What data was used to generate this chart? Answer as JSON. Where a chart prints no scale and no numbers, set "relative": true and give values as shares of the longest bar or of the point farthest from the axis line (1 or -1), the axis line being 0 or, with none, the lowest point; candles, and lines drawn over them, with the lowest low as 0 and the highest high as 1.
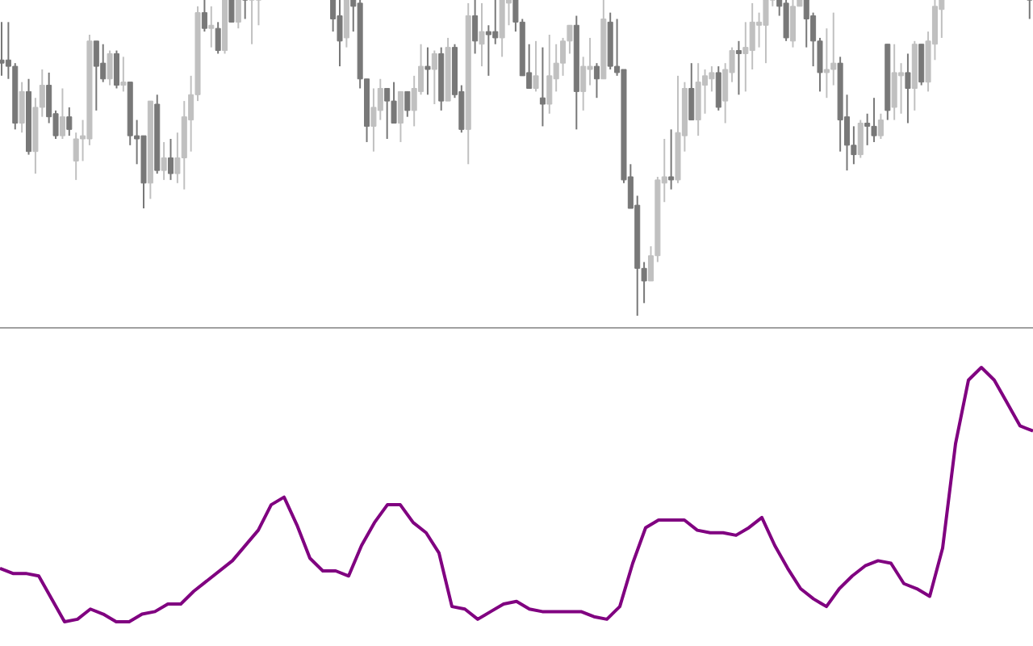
{
  "chart_data": [
    {
      "type": "candlestick",
      "relative": true,
      "categories": [
        null,
        null,
        null,
        null,
        null,
        null,
        null,
        null,
        null,
        null,
        null,
        null,
        null,
        null,
        null,
        null,
        null,
        null,
        null,
        null,
        null,
        null,
        null,
        null,
        null,
        null,
        null,
        null,
        null,
        null,
        null,
        null,
        null,
        null,
        null,
        null,
        null,
        null,
        null,
        null,
        null,
        null,
        null,
        null,
        null,
        null,
        null,
        null,
        null,
        null,
        null,
        null,
        null,
        null,
        null,
        null,
        null,
        null,
        null,
        null,
        null,
        null,
        null,
        null,
        null,
        null,
        null,
        null,
        null,
        null,
        null,
        null,
        null,
        null,
        null,
        null,
        null,
        null,
        null,
        null,
        null,
        null,
        null,
        null,
        null,
        null,
        null,
        null,
        null,
        null,
        null,
        null,
        null,
        null,
        null,
        null,
        null,
        null,
        null,
        null,
        null,
        null,
        null,
        null,
        null,
        null,
        null,
        null,
        null,
        null,
        null,
        null,
        null,
        null,
        null,
        null,
        null,
        null,
        null,
        null,
        null,
        null,
        null,
        null,
        null,
        null,
        null,
        null,
        null,
        null,
        null,
        null,
        null,
        null,
        null,
        null,
        null,
        null,
        null,
        null,
        null,
        null,
        null,
        null,
        null,
        null,
        null,
        null,
        null,
        null,
        null,
        null,
        null
      ],
      "ohlc": [
        [
          0.81,
          0.93,
          0.76,
          0.8
        ],
        [
          0.81,
          0.93,
          0.75,
          0.79
        ],
        [
          0.79,
          0.8,
          0.59,
          0.61
        ],
        [
          0.61,
          0.74,
          0.58,
          0.71
        ],
        [
          0.71,
          0.75,
          0.51,
          0.52
        ],
        [
          0.52,
          0.69,
          0.45,
          0.66
        ],
        [
          0.66,
          0.78,
          0.63,
          0.73
        ],
        [
          0.73,
          0.77,
          0.61,
          0.63
        ],
        [
          0.64,
          0.65,
          0.56,
          0.57
        ],
        [
          0.57,
          0.72,
          0.56,
          0.63
        ],
        [
          0.63,
          0.66,
          0.57,
          0.59
        ],
        [
          0.49,
          0.58,
          0.43,
          0.56
        ],
        [
          0.56,
          0.62,
          0.49,
          0.57
        ],
        [
          0.56,
          0.89,
          0.54,
          0.87
        ],
        [
          0.87,
          0.87,
          0.65,
          0.79
        ],
        [
          0.8,
          0.86,
          0.74,
          0.75
        ],
        [
          0.75,
          0.84,
          0.73,
          0.83
        ],
        [
          0.83,
          0.84,
          0.72,
          0.73
        ],
        [
          0.73,
          0.82,
          0.71,
          0.74
        ],
        [
          0.74,
          0.74,
          0.54,
          0.57
        ],
        [
          0.57,
          0.62,
          0.48,
          0.56
        ],
        [
          0.57,
          0.57,
          0.34,
          0.42
        ],
        [
          0.42,
          0.68,
          0.37,
          0.68
        ],
        [
          0.67,
          0.7,
          0.45,
          0.46
        ],
        [
          0.46,
          0.55,
          0.43,
          0.5
        ],
        [
          0.5,
          0.56,
          0.43,
          0.45
        ],
        [
          0.45,
          0.58,
          0.42,
          0.5
        ],
        [
          0.5,
          0.68,
          0.4,
          0.63
        ],
        [
          0.62,
          0.76,
          0.52,
          0.7
        ],
        [
          0.7,
          0.98,
          0.68,
          0.96
        ],
        [
          0.96,
          1,
          0.9,
          0.91
        ],
        [
          0.91,
          0.98,
          0.85,
          0.92
        ],
        [
          0.91,
          0.93,
          0.83,
          0.84
        ],
        [
          0.84,
          1,
          0.83,
          1
        ],
        [
          1,
          1,
          0.93,
          0.93
        ],
        [
          0.93,
          1,
          0.91,
          1
        ],
        [
          1,
          1,
          0.94,
          1
        ],
        [
          1,
          1,
          0.86,
          1
        ],
        [
          1,
          1,
          0.92,
          1
        ],
        null,
        null,
        null,
        null,
        null,
        null,
        null,
        null,
        null,
        null,
        [
          1,
          1,
          0.9,
          0.94
        ],
        [
          0.95,
          1,
          0.79,
          0.87
        ],
        [
          0.88,
          1,
          0.85,
          1
        ],
        [
          1,
          1,
          0.9,
          0.98
        ],
        [
          0.99,
          1,
          0.72,
          0.75
        ],
        [
          0.75,
          0.75,
          0.55,
          0.6
        ],
        [
          0.6,
          0.72,
          0.52,
          0.66
        ],
        [
          0.65,
          0.75,
          0.62,
          0.72
        ],
        [
          0.72,
          0.72,
          0.56,
          0.68
        ],
        [
          0.68,
          0.74,
          0.61,
          0.61
        ],
        [
          0.61,
          0.71,
          0.55,
          0.71
        ],
        [
          0.71,
          0.71,
          0.63,
          0.65
        ],
        [
          0.65,
          0.76,
          0.6,
          0.72
        ],
        [
          0.71,
          0.86,
          0.7,
          0.79
        ],
        [
          0.79,
          0.85,
          0.7,
          0.78
        ],
        [
          0.78,
          0.84,
          0.67,
          0.83
        ],
        [
          0.83,
          0.85,
          0.65,
          0.68
        ],
        [
          0.68,
          0.88,
          0.68,
          0.85
        ],
        [
          0.85,
          0.86,
          0.69,
          0.7
        ],
        [
          0.71,
          0.73,
          0.58,
          0.59
        ],
        [
          0.59,
          0.99,
          0.48,
          0.95
        ],
        [
          0.95,
          1,
          0.83,
          0.87
        ],
        [
          0.86,
          0.99,
          0.79,
          0.9
        ],
        [
          0.9,
          0.92,
          0.76,
          0.89
        ],
        [
          0.9,
          1,
          0.86,
          0.88
        ],
        [
          0.88,
          1,
          0.82,
          1
        ],
        [
          0.99,
          1,
          0.92,
          1
        ],
        [
          1,
          1,
          0.9,
          0.93
        ],
        [
          0.93,
          0.94,
          0.76,
          0.76
        ],
        [
          0.77,
          0.86,
          0.72,
          0.72
        ],
        [
          0.72,
          0.87,
          0.71,
          0.76
        ],
        [
          0.69,
          0.85,
          0.6,
          0.67
        ],
        [
          0.67,
          0.89,
          0.64,
          0.76
        ],
        [
          0.75,
          0.86,
          0.71,
          0.8
        ],
        [
          0.8,
          0.88,
          0.76,
          0.87
        ],
        [
          0.87,
          0.92,
          0.83,
          0.92
        ],
        [
          0.92,
          0.95,
          0.59,
          0.71
        ],
        [
          0.71,
          0.82,
          0.65,
          0.79
        ],
        [
          0.78,
          0.88,
          0.73,
          0.79
        ],
        [
          0.79,
          0.8,
          0.69,
          0.75
        ],
        [
          0.75,
          1,
          0.75,
          0.94
        ],
        [
          0.93,
          0.96,
          0.78,
          0.79
        ],
        [
          0.79,
          0.94,
          0.76,
          0.77
        ],
        [
          0.78,
          0.78,
          0.42,
          0.43
        ],
        [
          0.44,
          0.48,
          0.34,
          0.34
        ],
        [
          0.35,
          0.38,
          0,
          0.15
        ],
        [
          0.15,
          0.17,
          0.04,
          0.11
        ],
        [
          0.11,
          0.22,
          0.11,
          0.19
        ],
        [
          0.19,
          0.44,
          0.17,
          0.43
        ],
        [
          0.42,
          0.56,
          0.36,
          0.44
        ],
        [
          0.44,
          0.59,
          0.4,
          0.43
        ],
        [
          0.43,
          0.76,
          0.42,
          0.58
        ],
        [
          0.57,
          0.74,
          0.52,
          0.72
        ],
        [
          0.72,
          0.8,
          0.62,
          0.62
        ],
        [
          0.62,
          0.8,
          0.57,
          0.74
        ],
        [
          0.73,
          0.78,
          0.64,
          0.76
        ],
        [
          0.75,
          0.79,
          0.71,
          0.77
        ],
        [
          0.77,
          0.79,
          0.65,
          0.66
        ],
        [
          0.68,
          0.8,
          0.61,
          0.78
        ],
        [
          0.77,
          0.85,
          0.74,
          0.84
        ],
        [
          0.84,
          0.87,
          0.7,
          0.83
        ],
        [
          0.83,
          0.93,
          0.71,
          0.85
        ],
        [
          0.84,
          0.99,
          0.78,
          0.93
        ],
        [
          0.92,
          0.96,
          0.85,
          0.93
        ],
        [
          0.92,
          1,
          0.8,
          1
        ],
        [
          1,
          1,
          0.98,
          1
        ],
        [
          1,
          1,
          0.95,
          0.98
        ],
        [
          0.99,
          1,
          0.87,
          0.88
        ],
        [
          0.87,
          1,
          0.85,
          0.98
        ],
        [
          0.98,
          1,
          0.98,
          1
        ],
        [
          1,
          1,
          0.85,
          0.94
        ],
        [
          0.95,
          0.96,
          0.79,
          0.87
        ],
        [
          0.87,
          0.88,
          0.71,
          0.77
        ],
        [
          0.77,
          0.91,
          0.69,
          0.78
        ],
        [
          0.78,
          0.96,
          0.73,
          0.8
        ],
        [
          0.8,
          0.82,
          0.52,
          0.62
        ],
        [
          0.63,
          0.7,
          0.46,
          0.54
        ],
        [
          0.54,
          0.6,
          0.48,
          0.51
        ],
        [
          0.51,
          0.62,
          0.5,
          0.61
        ],
        [
          0.61,
          0.64,
          0.54,
          0.6
        ],
        [
          0.6,
          0.69,
          0.55,
          0.57
        ],
        [
          0.57,
          0.64,
          0.56,
          0.62
        ],
        [
          0.86,
          0.86,
          0.62,
          0.65
        ],
        [
          0.66,
          0.86,
          0.62,
          0.77
        ],
        [
          0.76,
          0.8,
          0.64,
          0.77
        ],
        [
          0.77,
          0.83,
          0.61,
          0.72
        ],
        [
          0.72,
          0.87,
          0.65,
          0.86
        ],
        [
          0.86,
          0.86,
          0.73,
          0.74
        ],
        [
          0.74,
          0.9,
          0.71,
          0.87
        ],
        [
          0.86,
          1,
          0.81,
          0.98
        ],
        [
          0.97,
          1,
          0.88,
          1
        ],
        null,
        null,
        null,
        null,
        null,
        null,
        null,
        null,
        null,
        null,
        null,
        null,
        [
          1,
          1,
          0.94,
          1
        ]
      ],
      "colors": [
        "#787878",
        "#787878",
        "#787878",
        "#c0c0c0",
        "#787878",
        "#c0c0c0",
        "#c0c0c0",
        "#787878",
        "#787878",
        "#c0c0c0",
        "#787878",
        "#c0c0c0",
        "#c0c0c0",
        "#c0c0c0",
        "#787878",
        "#787878",
        "#c0c0c0",
        "#787878",
        "#c0c0c0",
        "#787878",
        "#787878",
        "#787878",
        "#c0c0c0",
        "#787878",
        "#c0c0c0",
        "#787878",
        "#c0c0c0",
        "#c0c0c0",
        "#c0c0c0",
        "#c0c0c0",
        "#787878",
        "#c0c0c0",
        "#787878",
        "#c0c0c0",
        "#787878",
        "#c0c0c0",
        "#787878",
        "#c0c0c0",
        "#c0c0c0",
        null,
        null,
        null,
        null,
        null,
        null,
        null,
        null,
        null,
        null,
        "#787878",
        "#787878",
        "#c0c0c0",
        "#787878",
        "#787878",
        "#787878",
        "#c0c0c0",
        "#c0c0c0",
        "#787878",
        "#787878",
        "#c0c0c0",
        "#787878",
        "#c0c0c0",
        "#c0c0c0",
        "#787878",
        "#c0c0c0",
        "#787878",
        "#c0c0c0",
        "#787878",
        "#787878",
        "#c0c0c0",
        "#787878",
        "#c0c0c0",
        "#787878",
        "#787878",
        "#c0c0c0",
        "#c0c0c0",
        "#787878",
        "#787878",
        "#787878",
        "#c0c0c0",
        "#787878",
        "#c0c0c0",
        "#c0c0c0",
        "#c0c0c0",
        "#c0c0c0",
        "#787878",
        "#c0c0c0",
        "#c0c0c0",
        "#787878",
        "#c0c0c0",
        "#787878",
        "#787878",
        "#787878",
        "#787878",
        "#787878",
        "#787878",
        "#c0c0c0",
        "#c0c0c0",
        "#c0c0c0",
        "#787878",
        "#c0c0c0",
        "#c0c0c0",
        "#787878",
        "#c0c0c0",
        "#c0c0c0",
        "#c0c0c0",
        "#787878",
        "#c0c0c0",
        "#c0c0c0",
        "#787878",
        "#c0c0c0",
        "#c0c0c0",
        "#c0c0c0",
        "#c0c0c0",
        "#c0c0c0",
        "#787878",
        "#787878",
        "#c0c0c0",
        "#c0c0c0",
        "#787878",
        "#787878",
        "#787878",
        "#c0c0c0",
        "#c0c0c0",
        "#787878",
        "#787878",
        "#787878",
        "#c0c0c0",
        "#787878",
        "#787878",
        "#c0c0c0",
        "#787878",
        "#c0c0c0",
        "#c0c0c0",
        "#787878",
        "#c0c0c0",
        "#787878",
        "#c0c0c0",
        "#c0c0c0",
        "#c0c0c0",
        null,
        null,
        null,
        null,
        null,
        null,
        null,
        null,
        null,
        null,
        null,
        null,
        "#787878"
      ]
    },
    {
      "type": "line",
      "relative": true,
      "color": "#800080",
      "categories": [
        null,
        null,
        null,
        null,
        null,
        null,
        null,
        null,
        null,
        null,
        null,
        null,
        null,
        null,
        null,
        null,
        null,
        null,
        null,
        null,
        null,
        null,
        null,
        null,
        null,
        null,
        null,
        null,
        null,
        null,
        null,
        null,
        null,
        null,
        null,
        null,
        null,
        null,
        null,
        null,
        null,
        null,
        null,
        null,
        null,
        null,
        null,
        null,
        null,
        null,
        null,
        null,
        null,
        null,
        null,
        null,
        null,
        null,
        null,
        null,
        null,
        null,
        null,
        null,
        null,
        null,
        null,
        null,
        null,
        null,
        null,
        null,
        null,
        null,
        null,
        null,
        null,
        null,
        null,
        null,
        null
      ],
      "values": [
        0.21,
        0.19,
        0.19,
        0.18,
        0.09,
        0,
        0.01,
        0.05,
        0.03,
        0,
        0,
        0.03,
        0.04,
        0.07,
        0.07,
        0.12,
        0.16,
        0.2,
        0.24,
        0.3,
        0.36,
        0.46,
        0.49,
        0.38,
        0.25,
        0.2,
        0.2,
        0.18,
        0.3,
        0.39,
        0.46,
        0.46,
        0.39,
        0.35,
        0.27,
        0.06,
        0.05,
        0.01,
        0.04,
        0.07,
        0.08,
        0.05,
        0.04,
        0.04,
        0.04,
        0.04,
        0.02,
        0.01,
        0.06,
        0.23,
        0.37,
        0.4,
        0.4,
        0.4,
        0.36,
        0.35,
        0.35,
        0.34,
        0.37,
        0.41,
        0.3,
        0.21,
        0.13,
        0.09,
        0.06,
        0.13,
        0.18,
        0.22,
        0.24,
        0.23,
        0.15,
        0.13,
        0.1,
        0.29,
        0.7,
        0.95,
        1.0,
        0.95,
        0.86,
        0.77,
        0.75
      ]
    }
  ]
}
